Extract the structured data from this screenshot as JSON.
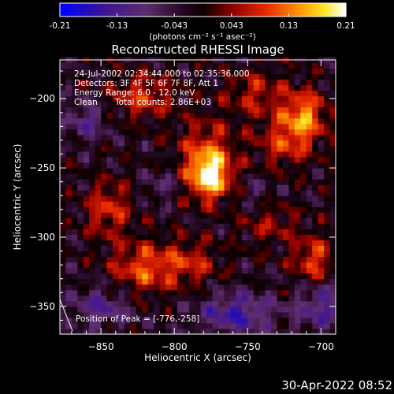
{
  "chart_data": {
    "type": "heatmap",
    "title": "Reconstructed RHESSI Image",
    "xlabel": "Heliocentric X (arcsec)",
    "ylabel": "Heliocentric Y (arcsec)",
    "xlim": [
      -878,
      -690
    ],
    "ylim": [
      -370,
      -172
    ],
    "xticks": [
      -850,
      -800,
      -750,
      -700
    ],
    "yticks": [
      -200,
      -250,
      -300,
      -350
    ],
    "colorbar": {
      "min": -0.21,
      "max": 0.21,
      "ticks": [
        "-0.21",
        "-0.13",
        "-0.043",
        "0.043",
        "0.13",
        "0.21"
      ],
      "units": "(photons cm⁻² s⁻¹ asec⁻²)"
    },
    "annotations": [
      "24-Jul-2002 02:34:44.000 to 02:35:36.000",
      "Detectors: 3F 4F 5F 6F 7F 8F, Att 1",
      "Energy Range: 6.0 - 12.0 keV",
      "Clean",
      "Total counts: 2.86E+03"
    ],
    "peak_label": "Position of Peak = [-776,-258]",
    "peak_position": [
      -776,
      -258
    ],
    "blobs": [
      {
        "x": -776,
        "y": -256,
        "sx": 10,
        "sy": 12,
        "amp": 0.21
      },
      {
        "x": -778,
        "y": -236,
        "sx": 14,
        "sy": 16,
        "amp": 0.09
      },
      {
        "x": -712,
        "y": -212,
        "sx": 11,
        "sy": 13,
        "amp": 0.15
      },
      {
        "x": -725,
        "y": -232,
        "sx": 13,
        "sy": 12,
        "amp": 0.09
      },
      {
        "x": -745,
        "y": -196,
        "sx": 14,
        "sy": 12,
        "amp": 0.08
      },
      {
        "x": -822,
        "y": -198,
        "sx": 15,
        "sy": 11,
        "amp": 0.1
      },
      {
        "x": -845,
        "y": -280,
        "sx": 11,
        "sy": 14,
        "amp": 0.1
      },
      {
        "x": -820,
        "y": -322,
        "sx": 16,
        "sy": 13,
        "amp": 0.12
      },
      {
        "x": -788,
        "y": -318,
        "sx": 13,
        "sy": 11,
        "amp": 0.08
      },
      {
        "x": -705,
        "y": -316,
        "sx": 10,
        "sy": 12,
        "amp": 0.11
      },
      {
        "x": -735,
        "y": -290,
        "sx": 14,
        "sy": 11,
        "amp": 0.06
      },
      {
        "x": -860,
        "y": -215,
        "sx": 10,
        "sy": 10,
        "amp": -0.08
      },
      {
        "x": -758,
        "y": -355,
        "sx": 18,
        "sy": 10,
        "amp": -0.12
      },
      {
        "x": -700,
        "y": -350,
        "sx": 12,
        "sy": 12,
        "amp": -0.1
      },
      {
        "x": -850,
        "y": -350,
        "sx": 14,
        "sy": 10,
        "amp": -0.09
      },
      {
        "x": -808,
        "y": -262,
        "sx": 8,
        "sy": 8,
        "amp": -0.05
      },
      {
        "x": -745,
        "y": -268,
        "sx": 8,
        "sy": 8,
        "amp": -0.04
      }
    ]
  },
  "footer": {
    "timestamp": "30-Apr-2022 08:52"
  }
}
